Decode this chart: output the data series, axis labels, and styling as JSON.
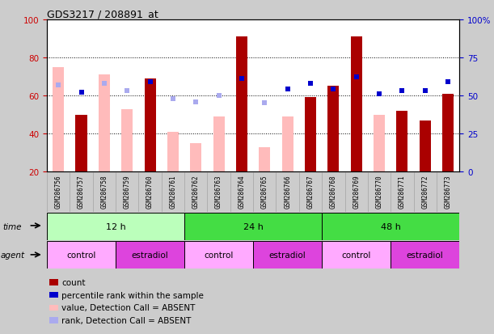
{
  "title": "GDS3217 / 208891_at",
  "samples": [
    "GSM286756",
    "GSM286757",
    "GSM286758",
    "GSM286759",
    "GSM286760",
    "GSM286761",
    "GSM286762",
    "GSM286763",
    "GSM286764",
    "GSM286765",
    "GSM286766",
    "GSM286767",
    "GSM286768",
    "GSM286769",
    "GSM286770",
    "GSM286771",
    "GSM286772",
    "GSM286773"
  ],
  "count_values": [
    75,
    50,
    71,
    53,
    69,
    41,
    35,
    49,
    91,
    33,
    49,
    59,
    65,
    91,
    50,
    52,
    47,
    61
  ],
  "rank_values": [
    57,
    52,
    58,
    53,
    59,
    48,
    46,
    50,
    61,
    45,
    54,
    58,
    54,
    62,
    51,
    53,
    53,
    59
  ],
  "is_absent": [
    true,
    false,
    true,
    true,
    false,
    true,
    true,
    true,
    false,
    true,
    true,
    false,
    false,
    false,
    true,
    false,
    false,
    false
  ],
  "rank_is_absent": [
    true,
    false,
    true,
    true,
    false,
    true,
    true,
    true,
    false,
    true,
    false,
    false,
    false,
    false,
    false,
    false,
    false,
    false
  ],
  "ylim_left": [
    20,
    100
  ],
  "ylim_right": [
    0,
    100
  ],
  "left_ticks": [
    20,
    40,
    60,
    80,
    100
  ],
  "right_ticks": [
    0,
    25,
    50,
    75,
    100
  ],
  "right_tick_labels": [
    "0",
    "25",
    "50",
    "75",
    "100%"
  ],
  "time_groups": [
    {
      "label": "12 h",
      "start": 0,
      "end": 6,
      "color": "#bbffbb"
    },
    {
      "label": "24 h",
      "start": 6,
      "end": 12,
      "color": "#44dd44"
    },
    {
      "label": "48 h",
      "start": 12,
      "end": 18,
      "color": "#44dd44"
    }
  ],
  "agent_groups": [
    {
      "label": "control",
      "start": 0,
      "end": 3,
      "color": "#ffaaff"
    },
    {
      "label": "estradiol",
      "start": 3,
      "end": 6,
      "color": "#dd44dd"
    },
    {
      "label": "control",
      "start": 6,
      "end": 9,
      "color": "#ffaaff"
    },
    {
      "label": "estradiol",
      "start": 9,
      "end": 12,
      "color": "#dd44dd"
    },
    {
      "label": "control",
      "start": 12,
      "end": 15,
      "color": "#ffaaff"
    },
    {
      "label": "estradiol",
      "start": 15,
      "end": 18,
      "color": "#dd44dd"
    }
  ],
  "count_color_present": "#aa0000",
  "count_color_absent": "#ffbbbb",
  "rank_color_present": "#0000cc",
  "rank_color_absent": "#aaaaee",
  "bg_color": "#cccccc",
  "plot_bg": "#ffffff",
  "left_axis_color": "#cc0000",
  "right_axis_color": "#0000cc",
  "sample_label_bg": "#cccccc"
}
